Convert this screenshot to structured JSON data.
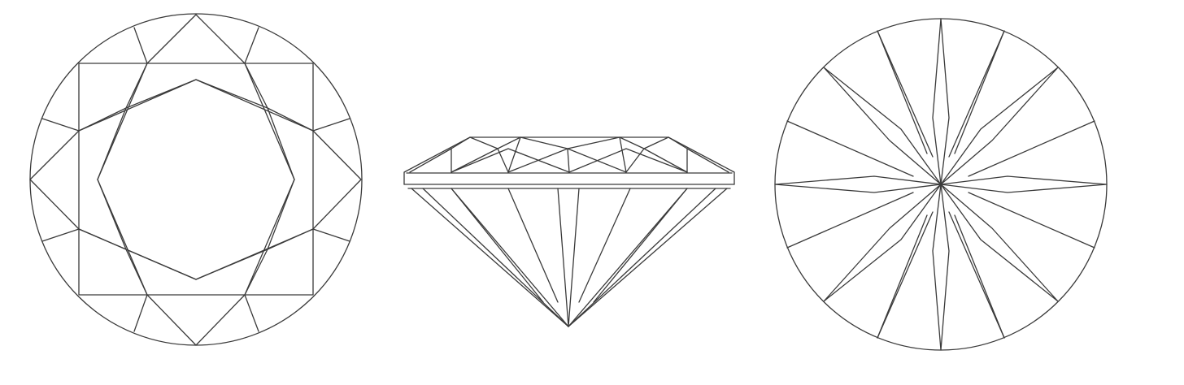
{
  "figure": {
    "views": [
      {
        "id": "crown-view",
        "kind": "top",
        "description_hidden": true
      },
      {
        "id": "profile-view",
        "kind": "side",
        "description_hidden": true
      },
      {
        "id": "pavilion-view",
        "kind": "bottom",
        "description_hidden": true
      }
    ],
    "colors": {
      "line": "#3a3a3a",
      "background": "#ffffff"
    }
  }
}
